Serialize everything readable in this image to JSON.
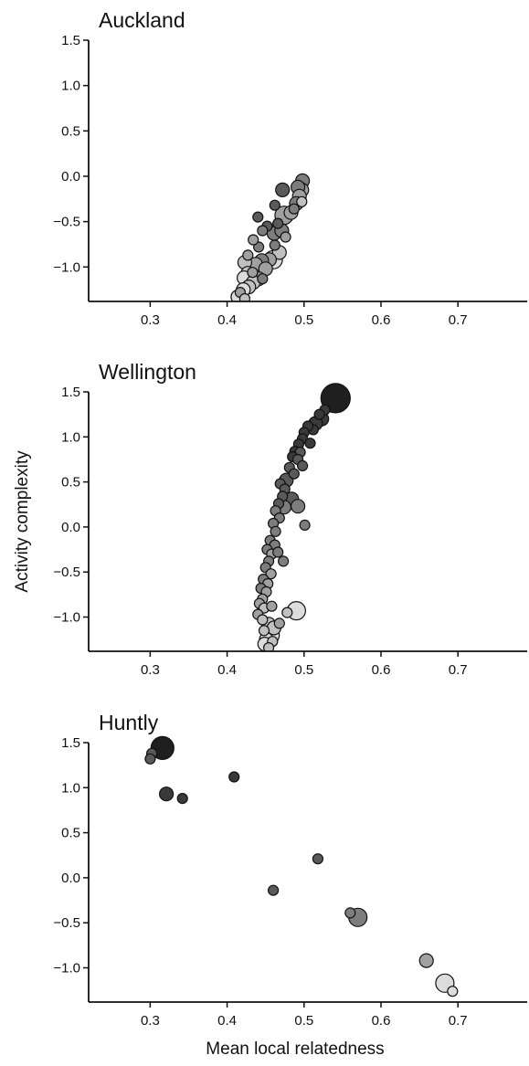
{
  "chart_data": {
    "type": "scatter",
    "shared_ylabel": "Activity complexity",
    "shared_xlabel": "Mean local relatedness",
    "xlim": [
      0.22,
      0.79
    ],
    "ylim": [
      -1.38,
      1.5
    ],
    "x_ticks": [
      0.3,
      0.4,
      0.5,
      0.6,
      0.7
    ],
    "x_tick_labels": [
      "0.3",
      "0.4",
      "0.5",
      "0.6",
      "0.7"
    ],
    "y_ticks": [
      1.5,
      1.0,
      0.5,
      0.0,
      -0.5,
      -1.0
    ],
    "y_tick_labels": [
      "1.5",
      "1.0",
      "0.5",
      "0.0",
      "−0.5",
      "−1.0"
    ],
    "color_scale": [
      "#dcdcdc",
      "#c0c0c0",
      "#a0a0a0",
      "#7d7d7d",
      "#5a5a5a",
      "#3a3a3a",
      "#1f1f1f"
    ],
    "panels": [
      {
        "title": "Auckland",
        "points": [
          {
            "x": 0.498,
            "y": -0.05,
            "size": 1,
            "shade": 3
          },
          {
            "x": 0.497,
            "y": -0.15,
            "size": 1,
            "shade": 2
          },
          {
            "x": 0.492,
            "y": -0.12,
            "size": 1,
            "shade": 3
          },
          {
            "x": 0.494,
            "y": -0.22,
            "size": 1,
            "shade": 2
          },
          {
            "x": 0.497,
            "y": -0.28,
            "size": 0,
            "shade": 1
          },
          {
            "x": 0.49,
            "y": -0.3,
            "size": 1,
            "shade": 3
          },
          {
            "x": 0.483,
            "y": -0.4,
            "size": 1,
            "shade": 2
          },
          {
            "x": 0.487,
            "y": -0.36,
            "size": 0,
            "shade": 3
          },
          {
            "x": 0.472,
            "y": -0.15,
            "size": 1,
            "shade": 4
          },
          {
            "x": 0.462,
            "y": -0.32,
            "size": 0,
            "shade": 4
          },
          {
            "x": 0.474,
            "y": -0.43,
            "size": 2,
            "shade": 2
          },
          {
            "x": 0.466,
            "y": -0.52,
            "size": 0,
            "shade": 4
          },
          {
            "x": 0.461,
            "y": -0.63,
            "size": 1,
            "shade": 3
          },
          {
            "x": 0.471,
            "y": -0.6,
            "size": 1,
            "shade": 3
          },
          {
            "x": 0.476,
            "y": -0.67,
            "size": 0,
            "shade": 2
          },
          {
            "x": 0.452,
            "y": -0.55,
            "size": 0,
            "shade": 4
          },
          {
            "x": 0.44,
            "y": -0.45,
            "size": 0,
            "shade": 4
          },
          {
            "x": 0.446,
            "y": -0.6,
            "size": 0,
            "shade": 3
          },
          {
            "x": 0.462,
            "y": -0.76,
            "size": 0,
            "shade": 3
          },
          {
            "x": 0.441,
            "y": -0.78,
            "size": 0,
            "shade": 3
          },
          {
            "x": 0.468,
            "y": -0.84,
            "size": 1,
            "shade": 1
          },
          {
            "x": 0.455,
            "y": -0.92,
            "size": 1,
            "shade": 2
          },
          {
            "x": 0.434,
            "y": -0.7,
            "size": 0,
            "shade": 2
          },
          {
            "x": 0.427,
            "y": -0.87,
            "size": 0,
            "shade": 2
          },
          {
            "x": 0.445,
            "y": -0.93,
            "size": 1,
            "shade": 3
          },
          {
            "x": 0.437,
            "y": -0.97,
            "size": 1,
            "shade": 2
          },
          {
            "x": 0.423,
            "y": -0.95,
            "size": 1,
            "shade": 1
          },
          {
            "x": 0.45,
            "y": -1.02,
            "size": 1,
            "shade": 2
          },
          {
            "x": 0.46,
            "y": -0.92,
            "size": 2,
            "shade": 0
          },
          {
            "x": 0.433,
            "y": -1.06,
            "size": 0,
            "shade": 2
          },
          {
            "x": 0.427,
            "y": -1.07,
            "size": 1,
            "shade": 1
          },
          {
            "x": 0.441,
            "y": -1.13,
            "size": 1,
            "shade": 2
          },
          {
            "x": 0.422,
            "y": -1.12,
            "size": 1,
            "shade": 0
          },
          {
            "x": 0.434,
            "y": -1.17,
            "size": 1,
            "shade": 1
          },
          {
            "x": 0.446,
            "y": -1.13,
            "size": 0,
            "shade": 3
          },
          {
            "x": 0.428,
            "y": -1.22,
            "size": 1,
            "shade": 1
          },
          {
            "x": 0.421,
            "y": -1.25,
            "size": 1,
            "shade": 0
          },
          {
            "x": 0.417,
            "y": -1.28,
            "size": 0,
            "shade": 2
          },
          {
            "x": 0.414,
            "y": -1.33,
            "size": 1,
            "shade": 0
          },
          {
            "x": 0.423,
            "y": -1.35,
            "size": 0,
            "shade": 1
          }
        ]
      },
      {
        "title": "Wellington",
        "points": [
          {
            "x": 0.541,
            "y": 1.43,
            "size": 4,
            "shade": 6
          },
          {
            "x": 0.527,
            "y": 1.3,
            "size": 0,
            "shade": 5
          },
          {
            "x": 0.52,
            "y": 1.25,
            "size": 0,
            "shade": 5
          },
          {
            "x": 0.523,
            "y": 1.2,
            "size": 1,
            "shade": 5
          },
          {
            "x": 0.515,
            "y": 1.15,
            "size": 1,
            "shade": 5
          },
          {
            "x": 0.512,
            "y": 1.08,
            "size": 0,
            "shade": 5
          },
          {
            "x": 0.505,
            "y": 1.12,
            "size": 0,
            "shade": 5
          },
          {
            "x": 0.5,
            "y": 1.05,
            "size": 0,
            "shade": 5
          },
          {
            "x": 0.498,
            "y": 0.98,
            "size": 0,
            "shade": 5
          },
          {
            "x": 0.508,
            "y": 0.93,
            "size": 0,
            "shade": 5
          },
          {
            "x": 0.493,
            "y": 0.92,
            "size": 0,
            "shade": 5
          },
          {
            "x": 0.488,
            "y": 0.84,
            "size": 0,
            "shade": 5
          },
          {
            "x": 0.495,
            "y": 0.83,
            "size": 0,
            "shade": 4
          },
          {
            "x": 0.485,
            "y": 0.78,
            "size": 0,
            "shade": 5
          },
          {
            "x": 0.492,
            "y": 0.75,
            "size": 0,
            "shade": 4
          },
          {
            "x": 0.498,
            "y": 0.68,
            "size": 0,
            "shade": 4
          },
          {
            "x": 0.481,
            "y": 0.66,
            "size": 0,
            "shade": 4
          },
          {
            "x": 0.487,
            "y": 0.59,
            "size": 0,
            "shade": 4
          },
          {
            "x": 0.477,
            "y": 0.52,
            "size": 1,
            "shade": 4
          },
          {
            "x": 0.469,
            "y": 0.48,
            "size": 0,
            "shade": 4
          },
          {
            "x": 0.475,
            "y": 0.42,
            "size": 0,
            "shade": 4
          },
          {
            "x": 0.472,
            "y": 0.34,
            "size": 0,
            "shade": 4
          },
          {
            "x": 0.484,
            "y": 0.31,
            "size": 1,
            "shade": 4
          },
          {
            "x": 0.467,
            "y": 0.26,
            "size": 0,
            "shade": 4
          },
          {
            "x": 0.474,
            "y": 0.22,
            "size": 1,
            "shade": 3
          },
          {
            "x": 0.492,
            "y": 0.23,
            "size": 1,
            "shade": 3
          },
          {
            "x": 0.463,
            "y": 0.18,
            "size": 0,
            "shade": 3
          },
          {
            "x": 0.468,
            "y": 0.1,
            "size": 0,
            "shade": 3
          },
          {
            "x": 0.46,
            "y": 0.04,
            "size": 0,
            "shade": 3
          },
          {
            "x": 0.501,
            "y": 0.02,
            "size": 0,
            "shade": 3
          },
          {
            "x": 0.463,
            "y": -0.05,
            "size": 0,
            "shade": 3
          },
          {
            "x": 0.456,
            "y": -0.15,
            "size": 0,
            "shade": 3
          },
          {
            "x": 0.462,
            "y": -0.2,
            "size": 0,
            "shade": 3
          },
          {
            "x": 0.452,
            "y": -0.25,
            "size": 0,
            "shade": 3
          },
          {
            "x": 0.458,
            "y": -0.3,
            "size": 0,
            "shade": 2
          },
          {
            "x": 0.466,
            "y": -0.28,
            "size": 0,
            "shade": 3
          },
          {
            "x": 0.454,
            "y": -0.38,
            "size": 0,
            "shade": 3
          },
          {
            "x": 0.473,
            "y": -0.38,
            "size": 0,
            "shade": 3
          },
          {
            "x": 0.45,
            "y": -0.45,
            "size": 0,
            "shade": 3
          },
          {
            "x": 0.457,
            "y": -0.52,
            "size": 0,
            "shade": 2
          },
          {
            "x": 0.447,
            "y": -0.58,
            "size": 0,
            "shade": 3
          },
          {
            "x": 0.453,
            "y": -0.63,
            "size": 0,
            "shade": 2
          },
          {
            "x": 0.444,
            "y": -0.68,
            "size": 0,
            "shade": 3
          },
          {
            "x": 0.451,
            "y": -0.72,
            "size": 0,
            "shade": 2
          },
          {
            "x": 0.446,
            "y": -0.8,
            "size": 0,
            "shade": 2
          },
          {
            "x": 0.442,
            "y": -0.85,
            "size": 0,
            "shade": 2
          },
          {
            "x": 0.448,
            "y": -0.9,
            "size": 0,
            "shade": 1
          },
          {
            "x": 0.458,
            "y": -0.88,
            "size": 0,
            "shade": 2
          },
          {
            "x": 0.44,
            "y": -0.97,
            "size": 0,
            "shade": 2
          },
          {
            "x": 0.446,
            "y": -1.03,
            "size": 0,
            "shade": 1
          },
          {
            "x": 0.454,
            "y": -1.08,
            "size": 1,
            "shade": 1
          },
          {
            "x": 0.461,
            "y": -1.12,
            "size": 1,
            "shade": 1
          },
          {
            "x": 0.468,
            "y": -1.07,
            "size": 0,
            "shade": 2
          },
          {
            "x": 0.448,
            "y": -1.15,
            "size": 0,
            "shade": 1
          },
          {
            "x": 0.456,
            "y": -1.2,
            "size": 2,
            "shade": 0
          },
          {
            "x": 0.451,
            "y": -1.25,
            "size": 1,
            "shade": 0
          },
          {
            "x": 0.459,
            "y": -1.27,
            "size": 0,
            "shade": 1
          },
          {
            "x": 0.449,
            "y": -1.3,
            "size": 1,
            "shade": 0
          },
          {
            "x": 0.454,
            "y": -1.34,
            "size": 0,
            "shade": 1
          },
          {
            "x": 0.49,
            "y": -0.93,
            "size": 2,
            "shade": 0
          },
          {
            "x": 0.478,
            "y": -0.95,
            "size": 0,
            "shade": 1
          }
        ]
      },
      {
        "title": "Huntly",
        "points": [
          {
            "x": 0.316,
            "y": 1.44,
            "size": 3,
            "shade": 6
          },
          {
            "x": 0.302,
            "y": 1.38,
            "size": 0,
            "shade": 4
          },
          {
            "x": 0.3,
            "y": 1.32,
            "size": 0,
            "shade": 4
          },
          {
            "x": 0.321,
            "y": 0.93,
            "size": 1,
            "shade": 5
          },
          {
            "x": 0.342,
            "y": 0.88,
            "size": 0,
            "shade": 5
          },
          {
            "x": 0.409,
            "y": 1.12,
            "size": 0,
            "shade": 5
          },
          {
            "x": 0.518,
            "y": 0.21,
            "size": 0,
            "shade": 4
          },
          {
            "x": 0.46,
            "y": -0.14,
            "size": 0,
            "shade": 4
          },
          {
            "x": 0.56,
            "y": -0.39,
            "size": 0,
            "shade": 3
          },
          {
            "x": 0.57,
            "y": -0.44,
            "size": 2,
            "shade": 3
          },
          {
            "x": 0.659,
            "y": -0.92,
            "size": 1,
            "shade": 2
          },
          {
            "x": 0.683,
            "y": -1.17,
            "size": 2,
            "shade": 0
          },
          {
            "x": 0.693,
            "y": -1.26,
            "size": 0,
            "shade": 0
          }
        ]
      }
    ]
  }
}
